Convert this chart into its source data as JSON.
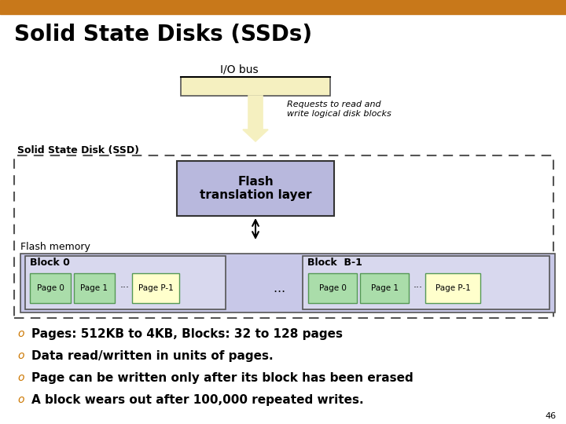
{
  "title": "Solid State Disks (SSDs)",
  "header_bar_color": "#C8781A",
  "background_color": "#FFFFFF",
  "io_bus_label": "I/O bus",
  "requests_label": "Requests to read and\nwrite logical disk blocks",
  "ssd_label": "Solid State Disk (SSD)",
  "ftl_label": "Flash\ntranslation layer",
  "flash_memory_label": "Flash memory",
  "block0_label": "Block 0",
  "blockb1_label": "Block  B-1",
  "pages": [
    "Page 0",
    "Page 1",
    "···",
    "Page P-1"
  ],
  "ellipsis_between": "…",
  "bullet_color": "#CC7700",
  "bullets": [
    "Pages: 512KB to 4KB, Blocks: 32 to 128 pages",
    "Data read/written in units of pages.",
    "Page can be written only after its block has been erased",
    "A block wears out after 100,000 repeated writes."
  ],
  "page_num": "46",
  "io_bus_rect_color": "#F5F0C0",
  "io_bus_rect_border": "#555555",
  "ftl_rect_color": "#B8B8DD",
  "ftl_rect_border": "#333333",
  "flash_mem_rect_color": "#C8C8E8",
  "flash_mem_rect_border": "#555555",
  "block_rect_color": "#D8D8EE",
  "block_rect_border": "#555555",
  "page_green_color": "#AADDAA",
  "page_yellow_color": "#FFFFCC",
  "page_rect_border": "#559955",
  "ssd_outer_border": "#555555",
  "arrow_color": "#333333"
}
